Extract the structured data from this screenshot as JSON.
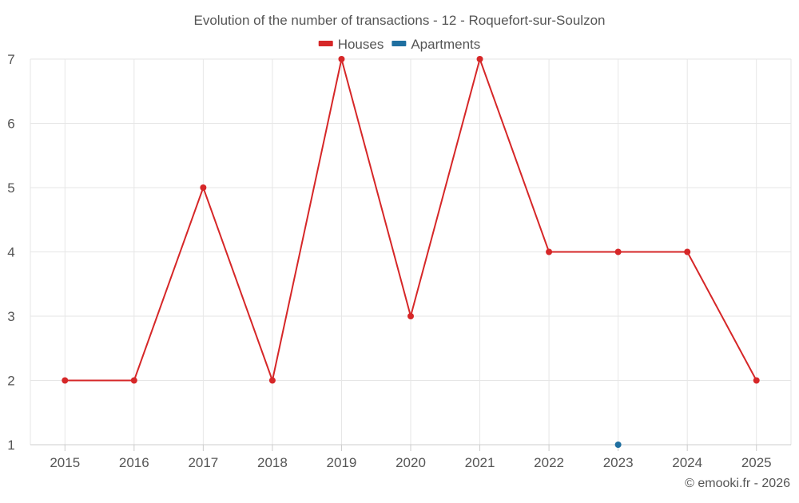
{
  "chart_data": {
    "type": "line",
    "title": "Evolution of the number of transactions - 12 - Roquefort-sur-Soulzon",
    "categories": [
      "2015",
      "2016",
      "2017",
      "2018",
      "2019",
      "2020",
      "2021",
      "2022",
      "2023",
      "2024",
      "2025"
    ],
    "series": [
      {
        "name": "Houses",
        "color": "#d62728",
        "values": [
          2,
          2,
          5,
          2,
          7,
          3,
          7,
          4,
          4,
          4,
          2
        ]
      },
      {
        "name": "Apartments",
        "color": "#1f6fa0",
        "values": [
          null,
          null,
          null,
          null,
          null,
          null,
          null,
          null,
          1,
          null,
          null
        ]
      }
    ],
    "ylim": [
      1,
      7
    ],
    "yticks": [
      "1",
      "2",
      "3",
      "4",
      "5",
      "6",
      "7"
    ],
    "grid": true,
    "legend_position": "top-center",
    "xlabel": "",
    "ylabel": ""
  },
  "credit": "© emooki.fr - 2026"
}
